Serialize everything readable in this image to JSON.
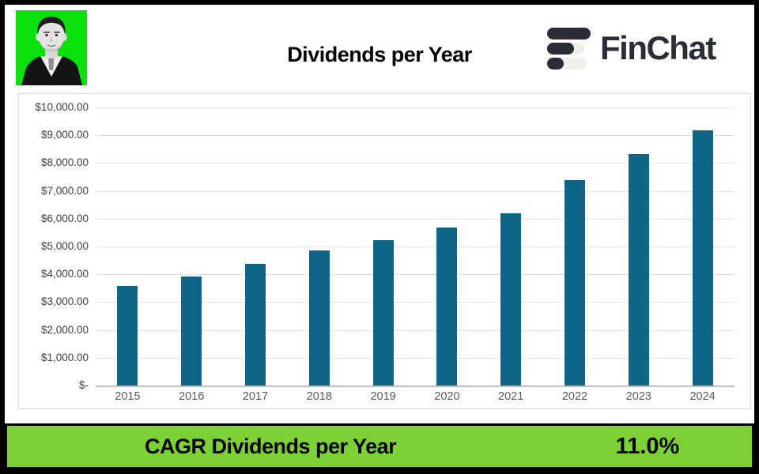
{
  "header": {
    "title": "Dividends per Year",
    "avatar": {
      "description": "man-portrait-photo",
      "bg_color": "#0CE00C"
    },
    "brand": {
      "name": "FinChat",
      "dark_color": "#2B2D37",
      "light_color": "#EFEEE9"
    }
  },
  "chart_data": {
    "type": "bar",
    "title": "Dividends per Year",
    "categories": [
      "2015",
      "2016",
      "2017",
      "2018",
      "2019",
      "2020",
      "2021",
      "2022",
      "2023",
      "2024"
    ],
    "values": [
      3585,
      3925,
      4380,
      4855,
      5235,
      5690,
      6195,
      7390,
      8320,
      9170
    ],
    "xlabel": "",
    "ylabel": "",
    "ylim": [
      0,
      10000
    ],
    "ytick_step": 1000,
    "ytick_labels_top_to_bottom": [
      "$10,000.00",
      "$9,000.00",
      "$8,000.00",
      "$7,000.00",
      "$6,000.00",
      "$5,000.00",
      "$4,000.00",
      "$3,000.00",
      "$2,000.00",
      "$1,000.00",
      "$-"
    ],
    "grid": true,
    "legend": false,
    "bar_color": "#0E6586",
    "gridline_color": "#E2E2E2",
    "axis_line_color": "#BDBDBD",
    "ytick_label_color": "#3F3F3F",
    "xtick_label_color": "#595959"
  },
  "footer": {
    "label": "CAGR Dividends per Year",
    "value": "11.0%",
    "bg_color": "#7CD136"
  }
}
